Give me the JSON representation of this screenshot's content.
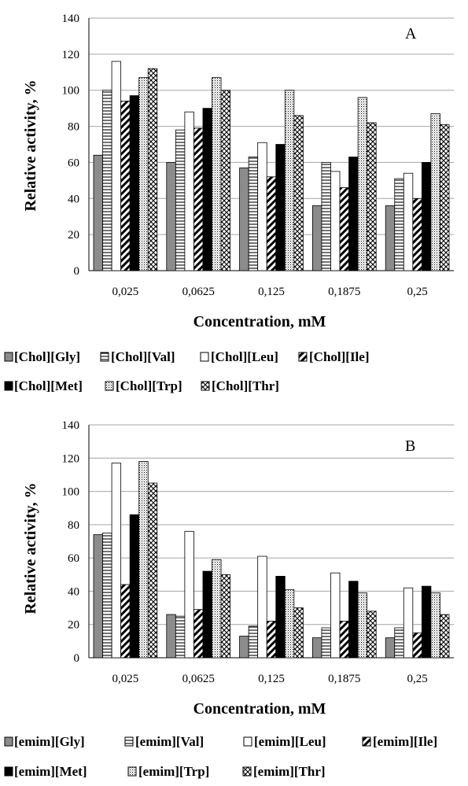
{
  "figure": {
    "panels": [
      {
        "panel_label": "A",
        "xlabel": "Concentration, mM",
        "ylabel": "Relative activity, %",
        "ticks": [
          "0",
          "20",
          "40",
          "60",
          "80",
          "100",
          "120",
          "140"
        ],
        "categories": [
          "0,025",
          "0,0625",
          "0,125",
          "0,1875",
          "0,25"
        ],
        "legend_row1": [
          "[Chol][Gly]",
          "[Chol][Val]",
          "[Chol][Leu]",
          "[Chol][Ile]"
        ],
        "legend_row2": [
          "[Chol][Met]",
          "[Chol][Trp]",
          "[Chol][Thr]"
        ]
      },
      {
        "panel_label": "B",
        "xlabel": "Concentration, mM",
        "ylabel": "Relative activity, %",
        "ticks": [
          "0",
          "20",
          "40",
          "60",
          "80",
          "100",
          "120",
          "140"
        ],
        "categories": [
          "0,025",
          "0,0625",
          "0,125",
          "0,1875",
          "0,25"
        ],
        "legend_row1": [
          "[emim][Gly]",
          "[emim][Val]",
          "[emim][Leu]",
          "[emim][Ile]"
        ],
        "legend_row2": [
          "[emim][Met]",
          "[emim][Trp]",
          "[emim][Thr]"
        ]
      }
    ]
  },
  "chart_data": [
    {
      "type": "bar",
      "panel_label": "A",
      "xlabel": "Concentration, mM",
      "ylabel": "Relative activity, %",
      "ylim": [
        0,
        140
      ],
      "grid": true,
      "legend_placement": "bottom",
      "categories": [
        "0,025",
        "0,0625",
        "0,125",
        "0,1875",
        "0,25"
      ],
      "series": [
        {
          "name": "[Chol][Gly]",
          "pattern": "gray",
          "values": [
            64,
            60,
            57,
            36,
            36
          ]
        },
        {
          "name": "[Chol][Val]",
          "pattern": "horizontal",
          "values": [
            100,
            78,
            63,
            60,
            51
          ]
        },
        {
          "name": "[Chol][Leu]",
          "pattern": "white",
          "values": [
            116,
            88,
            71,
            55,
            54
          ]
        },
        {
          "name": "[Chol][Ile]",
          "pattern": "diagonal",
          "values": [
            94,
            79,
            52,
            46,
            40
          ]
        },
        {
          "name": "[Chol][Met]",
          "pattern": "black",
          "values": [
            97,
            90,
            70,
            63,
            60
          ]
        },
        {
          "name": "[Chol][Trp]",
          "pattern": "dots",
          "values": [
            107,
            107,
            100,
            96,
            87
          ]
        },
        {
          "name": "[Chol][Thr]",
          "pattern": "cross",
          "values": [
            112,
            100,
            86,
            82,
            81
          ]
        }
      ]
    },
    {
      "type": "bar",
      "panel_label": "B",
      "xlabel": "Concentration, mM",
      "ylabel": "Relative activity, %",
      "ylim": [
        0,
        140
      ],
      "grid": true,
      "legend_placement": "bottom",
      "categories": [
        "0,025",
        "0,0625",
        "0,125",
        "0,1875",
        "0,25"
      ],
      "series": [
        {
          "name": "[emim][Gly]",
          "pattern": "gray",
          "values": [
            74,
            26,
            13,
            12,
            12
          ]
        },
        {
          "name": "[emim][Val]",
          "pattern": "horizontal",
          "values": [
            75,
            25,
            19,
            18,
            18
          ]
        },
        {
          "name": "[emim][Leu]",
          "pattern": "white",
          "values": [
            117,
            76,
            61,
            51,
            42
          ]
        },
        {
          "name": "[emim][Ile]",
          "pattern": "diagonal",
          "values": [
            44,
            29,
            22,
            22,
            15
          ]
        },
        {
          "name": "[emim][Met]",
          "pattern": "black",
          "values": [
            86,
            52,
            49,
            46,
            43
          ]
        },
        {
          "name": "[emim][Trp]",
          "pattern": "dots",
          "values": [
            118,
            59,
            41,
            39,
            39
          ]
        },
        {
          "name": "[emim][Thr]",
          "pattern": "cross",
          "values": [
            105,
            50,
            30,
            28,
            26
          ]
        }
      ]
    }
  ]
}
